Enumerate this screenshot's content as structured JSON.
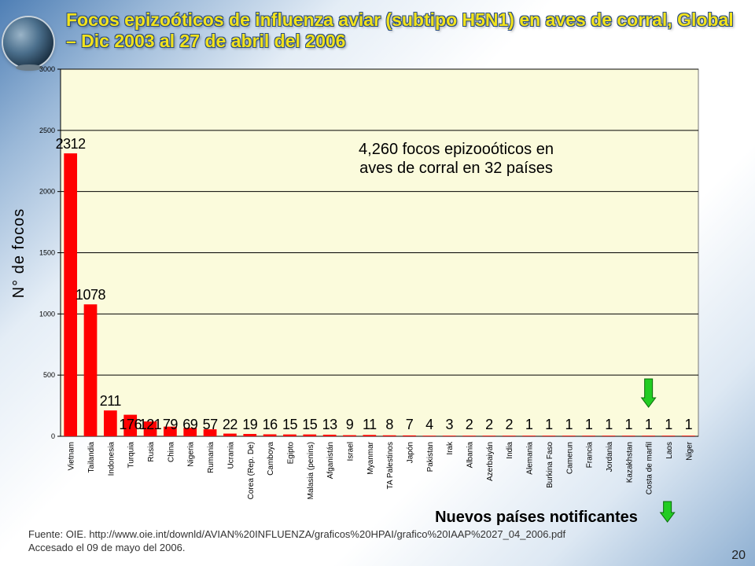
{
  "title": "Focos epizoóticos de influenza aviar (subtipo H5N1) en aves de corral, Global – Dic 2003 al 27 de abril del 2006",
  "chart_data": {
    "type": "bar",
    "title": "Focos epizoóticos de influenza aviar (subtipo H5N1) en aves de corral, Global – Dic 2003 al 27 de abril del 2006",
    "ylabel": "N° de focos",
    "xlabel": "",
    "ylim": [
      0,
      3000
    ],
    "yticks": [
      0,
      500,
      1000,
      1500,
      2000,
      2500,
      3000
    ],
    "grid": true,
    "bar_color": "#ff0000",
    "plot_background": "#fbfbdc",
    "categories": [
      "Vietnam",
      "Tailandia",
      "Indonesia",
      "Turquia",
      "Rusia",
      "China",
      "Nigeria",
      "Rumania",
      "Ucrania",
      "Corea (Rep. De)",
      "Camboya",
      "Egipto",
      "Malasia (penins)",
      "Afganistán",
      "Israel",
      "Myanmar",
      "TA Palestinos",
      "Japón",
      "Pakistan",
      "Irak",
      "Albania",
      "Azerbaiyán",
      "India",
      "Alemania",
      "Burkina Faso",
      "Camerun",
      "Francia",
      "Jordania",
      "Kazakhstan",
      "Costa de marfil",
      "Laos",
      "Niger"
    ],
    "values": [
      2312,
      1078,
      211,
      176,
      121,
      79,
      69,
      57,
      22,
      19,
      16,
      15,
      15,
      13,
      9,
      11,
      8,
      7,
      4,
      3,
      2,
      2,
      2,
      1,
      1,
      1,
      1,
      1,
      1,
      1,
      1,
      1
    ],
    "data_labels": [
      "2312",
      "1078",
      "211",
      "176",
      "121",
      "79",
      "69",
      "57",
      "22",
      "19",
      "16",
      "15",
      "15",
      "13",
      "9",
      "11",
      "8",
      "7",
      "4",
      "3",
      "2",
      "2",
      "2",
      "1",
      "1",
      "1",
      "1",
      "1",
      "1",
      "1",
      "1",
      "1"
    ],
    "annotations": [
      "4,260 focos epizooóticos en",
      "aves de corral en 32 países",
      "Nuevos países notificantes"
    ],
    "highlight_color": "#22cc22"
  },
  "source": {
    "line1": "Fuente: OIE. http://www.oie.int/downld/AVIAN%20INFLUENZA/graficos%20HPAI/grafico%20IAAP%2027_04_2006.pdf",
    "line2": "Accesado el 09 de mayo del 2006."
  },
  "page_number": "20"
}
